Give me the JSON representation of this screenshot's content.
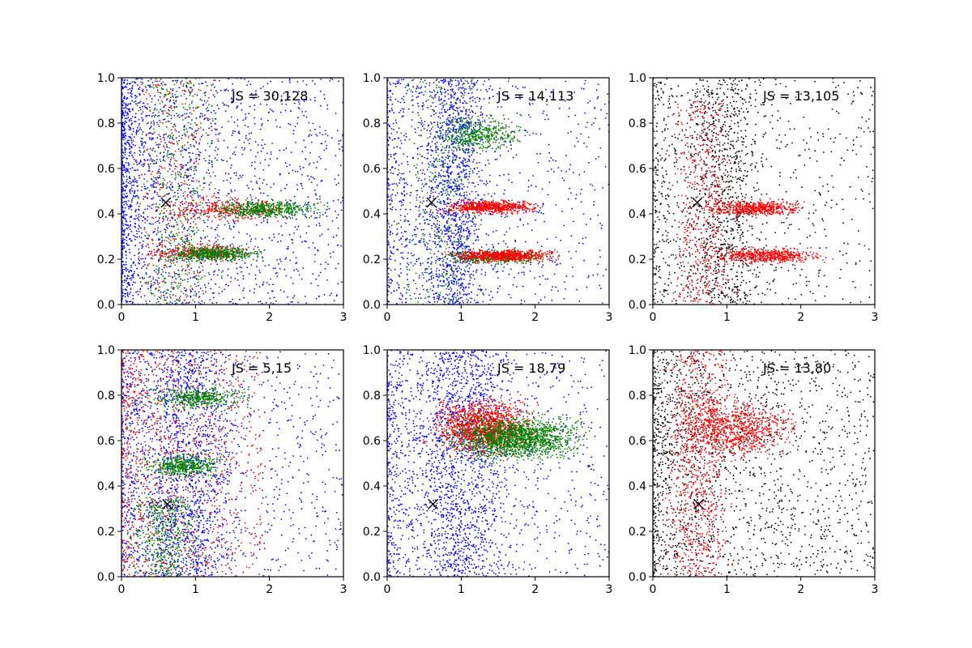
{
  "chart_data": [
    {
      "type": "scatter",
      "annotation": "JS = 30,128",
      "xlim": [
        0,
        3
      ],
      "ylim": [
        0,
        1
      ],
      "x_ticks": [
        "0",
        "1",
        "2",
        "3"
      ],
      "y_ticks": [
        "0.0",
        "0.2",
        "0.4",
        "0.6",
        "0.8",
        "1.0"
      ],
      "marker": {
        "x": 0.6,
        "y": 0.45
      },
      "series": [
        {
          "color": "#0000ff",
          "n": 2200,
          "clusters": [
            {
              "x": [
                0.0,
                3.0
              ],
              "y": [
                0.0,
                1.0
              ],
              "x_skew": 2.2
            }
          ]
        },
        {
          "color": "#ff0000",
          "n": 1000,
          "clusters": [
            {
              "x": [
                0.2,
                2.6
              ],
              "y": [
                0.35,
                0.49
              ]
            },
            {
              "x": [
                0.2,
                2.0
              ],
              "y": [
                0.18,
                0.28
              ]
            },
            {
              "x": [
                0.0,
                1.5
              ],
              "y": [
                0.0,
                1.0
              ]
            }
          ]
        },
        {
          "color": "#008000",
          "n": 1500,
          "clusters": [
            {
              "x": [
                0.9,
                3.0
              ],
              "y": [
                0.37,
                0.47
              ]
            },
            {
              "x": [
                0.5,
                2.0
              ],
              "y": [
                0.18,
                0.27
              ]
            },
            {
              "x": [
                0.0,
                1.5
              ],
              "y": [
                0.0,
                1.0
              ]
            }
          ]
        }
      ]
    },
    {
      "type": "scatter",
      "annotation": "JS = 14,113",
      "xlim": [
        0,
        3
      ],
      "ylim": [
        0,
        1
      ],
      "x_ticks": [
        "0",
        "1",
        "2",
        "3"
      ],
      "y_ticks": [
        "0.0",
        "0.2",
        "0.4",
        "0.6",
        "0.8",
        "1.0"
      ],
      "marker": {
        "x": 0.6,
        "y": 0.45
      },
      "series": [
        {
          "color": "#0000ff",
          "n": 2200,
          "clusters": [
            {
              "x": [
                0.3,
                1.5
              ],
              "y": [
                0.0,
                1.0
              ]
            },
            {
              "x": [
                0.0,
                3.0
              ],
              "y": [
                0.0,
                1.0
              ],
              "x_skew": 2.0
            }
          ]
        },
        {
          "color": "#008000",
          "n": 1200,
          "clusters": [
            {
              "x": [
                0.5,
                2.0
              ],
              "y": [
                0.65,
                0.85
              ]
            },
            {
              "x": [
                0.5,
                2.4
              ],
              "y": [
                0.17,
                0.25
              ]
            },
            {
              "x": [
                0.0,
                1.5
              ],
              "y": [
                0.0,
                1.0
              ]
            }
          ]
        },
        {
          "color": "#ff0000",
          "n": 1300,
          "clusters": [
            {
              "x": [
                0.6,
                2.2
              ],
              "y": [
                0.39,
                0.47
              ]
            },
            {
              "x": [
                0.6,
                2.5
              ],
              "y": [
                0.18,
                0.25
              ]
            }
          ]
        }
      ]
    },
    {
      "type": "scatter",
      "annotation": "JS = 13,105",
      "xlim": [
        0,
        3
      ],
      "ylim": [
        0,
        1
      ],
      "x_ticks": [
        "0",
        "1",
        "2",
        "3"
      ],
      "y_ticks": [
        "0.0",
        "0.2",
        "0.4",
        "0.6",
        "0.8",
        "1.0"
      ],
      "marker": {
        "x": 0.6,
        "y": 0.45
      },
      "series": [
        {
          "color": "#000000",
          "n": 1600,
          "clusters": [
            {
              "x": [
                0.3,
                1.6
              ],
              "y": [
                0.0,
                1.0
              ]
            },
            {
              "x": [
                0.0,
                3.0
              ],
              "y": [
                0.0,
                1.0
              ],
              "x_skew": 2.0
            }
          ]
        },
        {
          "color": "#ff0000",
          "n": 1600,
          "clusters": [
            {
              "x": [
                0.6,
                2.2
              ],
              "y": [
                0.38,
                0.47
              ]
            },
            {
              "x": [
                0.6,
                2.5
              ],
              "y": [
                0.17,
                0.26
              ]
            },
            {
              "x": [
                0.1,
                1.2
              ],
              "y": [
                0.0,
                0.9
              ]
            }
          ]
        }
      ]
    },
    {
      "type": "scatter",
      "annotation": "JS = 5,15",
      "xlim": [
        0,
        3
      ],
      "ylim": [
        0,
        1
      ],
      "x_ticks": [
        "0",
        "1",
        "2",
        "3"
      ],
      "y_ticks": [
        "0.0",
        "0.2",
        "0.4",
        "0.6",
        "0.8",
        "1.0"
      ],
      "marker": {
        "x": 0.62,
        "y": 0.32
      },
      "series": [
        {
          "color": "#0000ff",
          "n": 2400,
          "clusters": [
            {
              "x": [
                0.0,
                1.8
              ],
              "y": [
                0.0,
                1.0
              ]
            },
            {
              "x": [
                0.0,
                3.0
              ],
              "y": [
                0.0,
                1.0
              ],
              "x_skew": 2.0
            }
          ]
        },
        {
          "color": "#ff0000",
          "n": 1000,
          "clusters": [
            {
              "x": [
                0.0,
                1.9
              ],
              "y": [
                0.0,
                1.0
              ],
              "x_skew": 1.6
            }
          ]
        },
        {
          "color": "#008000",
          "n": 1300,
          "clusters": [
            {
              "x": [
                0.2,
                1.9
              ],
              "y": [
                0.72,
                0.86
              ]
            },
            {
              "x": [
                0.2,
                1.5
              ],
              "y": [
                0.42,
                0.56
              ]
            },
            {
              "x": [
                0.0,
                1.2
              ],
              "y": [
                0.0,
                0.35
              ]
            }
          ]
        }
      ]
    },
    {
      "type": "scatter",
      "annotation": "JS = 18,79",
      "xlim": [
        0,
        3
      ],
      "ylim": [
        0,
        1
      ],
      "x_ticks": [
        "0",
        "1",
        "2",
        "3"
      ],
      "y_ticks": [
        "0.0",
        "0.2",
        "0.4",
        "0.6",
        "0.8",
        "1.0"
      ],
      "marker": {
        "x": 0.62,
        "y": 0.32
      },
      "series": [
        {
          "color": "#0000ff",
          "n": 2400,
          "clusters": [
            {
              "x": [
                0.1,
                1.9
              ],
              "y": [
                0.0,
                1.0
              ]
            },
            {
              "x": [
                0.0,
                3.0
              ],
              "y": [
                0.0,
                1.0
              ],
              "x_skew": 2.0
            }
          ]
        },
        {
          "color": "#ff0000",
          "n": 1400,
          "clusters": [
            {
              "x": [
                0.4,
                2.2
              ],
              "y": [
                0.5,
                0.82
              ]
            }
          ]
        },
        {
          "color": "#008000",
          "n": 1600,
          "clusters": [
            {
              "x": [
                0.6,
                2.9
              ],
              "y": [
                0.48,
                0.74
              ]
            }
          ]
        }
      ]
    },
    {
      "type": "scatter",
      "annotation": "JS = 13,80",
      "xlim": [
        0,
        3
      ],
      "ylim": [
        0,
        1
      ],
      "x_ticks": [
        "0",
        "1",
        "2",
        "3"
      ],
      "y_ticks": [
        "0.0",
        "0.2",
        "0.4",
        "0.6",
        "0.8",
        "1.0"
      ],
      "marker": {
        "x": 0.62,
        "y": 0.32
      },
      "series": [
        {
          "color": "#000000",
          "n": 1800,
          "clusters": [
            {
              "x": [
                0.0,
                3.0
              ],
              "y": [
                0.0,
                1.0
              ],
              "x_skew": 1.8
            }
          ]
        },
        {
          "color": "#ff0000",
          "n": 1700,
          "clusters": [
            {
              "x": [
                0.1,
                2.1
              ],
              "y": [
                0.48,
                0.82
              ]
            },
            {
              "x": [
                0.0,
                1.2
              ],
              "y": [
                0.0,
                1.0
              ]
            }
          ]
        }
      ]
    }
  ]
}
